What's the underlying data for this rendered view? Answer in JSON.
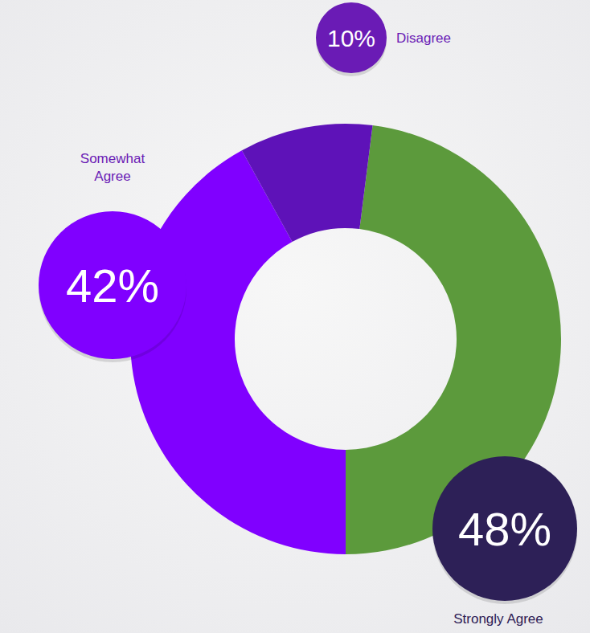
{
  "chart_data": {
    "type": "pie",
    "categories": [
      "Strongly Agree",
      "Somewhat Agree",
      "Disagree"
    ],
    "values": [
      48,
      42,
      10
    ],
    "value_labels": [
      "48%",
      "42%",
      "10%"
    ],
    "colors": [
      "#5c9a3c",
      "#8000ff",
      "#5e12b8"
    ],
    "data_labels": true
  }
}
